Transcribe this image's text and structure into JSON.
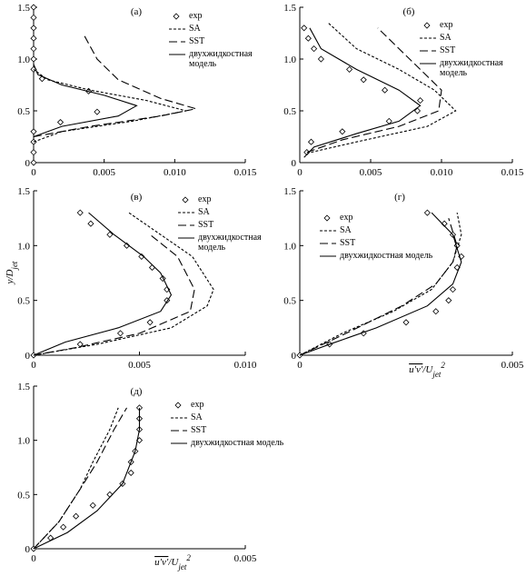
{
  "chart_data": [
    {
      "type": "line",
      "title": "(а)",
      "xlim": [
        0,
        0.015
      ],
      "ylim": [
        0,
        1.5
      ],
      "xticks": [
        0,
        0.005,
        {
          "value": 0.01,
          "label": "0.010"
        },
        0.015
      ],
      "yticks": [
        0,
        0.5,
        {
          "value": 1,
          "label": "1.0"
        },
        1.5
      ],
      "series": [
        {
          "name": "exp",
          "color": "#000",
          "marker": "diamond",
          "x": [
            0,
            0,
            0,
            0,
            0.0019,
            0.0045,
            0.0039,
            0.0006,
            0,
            0,
            0,
            0,
            0,
            0,
            0
          ],
          "y": [
            0,
            0.1,
            0.2,
            0.3,
            0.39,
            0.49,
            0.69,
            0.81,
            0.9,
            1,
            1.1,
            1.2,
            1.3,
            1.4,
            1.5
          ]
        },
        {
          "name": "SA",
          "color": "#000",
          "linestyle": "short-dash",
          "x": [
            0,
            0.002,
            0.007,
            0.0108,
            0.008,
            0.004,
            0.001,
            0
          ],
          "y": [
            0.2,
            0.3,
            0.4,
            0.5,
            0.6,
            0.7,
            0.8,
            0.9
          ]
        },
        {
          "name": "SST",
          "color": "#000",
          "linestyle": "long-dash",
          "x": [
            0,
            0.004,
            0.009,
            0.0115,
            0.009,
            0.006,
            0.0045,
            0.0035
          ],
          "y": [
            0.25,
            0.35,
            0.45,
            0.52,
            0.62,
            0.8,
            1,
            1.25
          ]
        },
        {
          "name": "двухжидкостная модель",
          "color": "#000",
          "linestyle": "solid",
          "x": [
            0,
            0.002,
            0.006,
            0.0073,
            0.005,
            0.002,
            0.0003,
            0
          ],
          "y": [
            0.25,
            0.35,
            0.45,
            0.55,
            0.65,
            0.75,
            0.85,
            0.95
          ]
        }
      ]
    },
    {
      "type": "line",
      "title": "(б)",
      "xlim": [
        0,
        0.015
      ],
      "ylim": [
        0,
        1.5
      ],
      "xticks": [
        0,
        0.005,
        {
          "value": 0.01,
          "label": "0.010"
        },
        0.015
      ],
      "yticks": [
        0,
        0.5,
        {
          "value": 1,
          "label": "1.0"
        },
        1.5
      ],
      "series": [
        {
          "name": "exp",
          "color": "#000",
          "marker": "diamond",
          "x": [
            0.0005,
            0.0008,
            0.003,
            0.0063,
            0.0083,
            0.0085,
            0.006,
            0.0045,
            0.0035,
            0.0015,
            0.001,
            0.0006,
            0.0003
          ],
          "y": [
            0.1,
            0.2,
            0.3,
            0.4,
            0.5,
            0.6,
            0.7,
            0.8,
            0.9,
            1,
            1.1,
            1.2,
            1.3
          ]
        },
        {
          "name": "SA",
          "color": "#000",
          "linestyle": "short-dash",
          "x": [
            0.0008,
            0.004,
            0.009,
            0.011,
            0.0095,
            0.007,
            0.004,
            0.002
          ],
          "y": [
            0.1,
            0.2,
            0.35,
            0.5,
            0.7,
            0.9,
            1.1,
            1.35
          ]
        },
        {
          "name": "SST",
          "color": "#000",
          "linestyle": "long-dash",
          "x": [
            0.0005,
            0.003,
            0.007,
            0.0098,
            0.01,
            0.0085,
            0.007,
            0.0055
          ],
          "y": [
            0.1,
            0.22,
            0.35,
            0.5,
            0.7,
            0.9,
            1.1,
            1.3
          ]
        },
        {
          "name": "двухжидкостная модель",
          "color": "#000",
          "linestyle": "solid",
          "x": [
            0.0003,
            0.001,
            0.004,
            0.007,
            0.0085,
            0.007,
            0.004,
            0.0015,
            0.0007
          ],
          "y": [
            0.05,
            0.15,
            0.28,
            0.4,
            0.55,
            0.7,
            0.9,
            1.1,
            1.3
          ]
        }
      ]
    },
    {
      "type": "line",
      "title": "(в)",
      "ylabel": [
        "y/D",
        "jet"
      ],
      "xlim": [
        0,
        0.01
      ],
      "ylim": [
        0,
        1.5
      ],
      "xticks": [
        0,
        0.005,
        {
          "value": 0.01,
          "label": "0.010"
        }
      ],
      "yticks": [
        0,
        0.5,
        {
          "value": 1,
          "label": "1.0"
        },
        1.5
      ],
      "series": [
        {
          "name": "exp",
          "color": "#000",
          "marker": "diamond",
          "x": [
            0,
            0.0022,
            0.0041,
            0.0055,
            0.0063,
            0.0063,
            0.0061,
            0.0056,
            0.0051,
            0.0044,
            0.0036,
            0.0027,
            0.0022
          ],
          "y": [
            0,
            0.1,
            0.2,
            0.3,
            0.5,
            0.6,
            0.7,
            0.8,
            0.9,
            1,
            1.1,
            1.2,
            1.3
          ]
        },
        {
          "name": "SA",
          "color": "#000",
          "linestyle": "short-dash",
          "x": [
            0,
            0.003,
            0.0065,
            0.0082,
            0.0085,
            0.0075,
            0.006,
            0.0045
          ],
          "y": [
            0,
            0.1,
            0.25,
            0.45,
            0.6,
            0.9,
            1.1,
            1.3
          ]
        },
        {
          "name": "SST",
          "color": "#000",
          "linestyle": "long-dash",
          "x": [
            0,
            0.002,
            0.005,
            0.0074,
            0.0076,
            0.0068,
            0.0055
          ],
          "y": [
            0,
            0.07,
            0.2,
            0.4,
            0.6,
            0.9,
            1.1
          ]
        },
        {
          "name": "двухжидкостная модель",
          "color": "#000",
          "linestyle": "solid",
          "x": [
            0,
            0.0015,
            0.004,
            0.006,
            0.0065,
            0.006,
            0.0052,
            0.0038,
            0.0026
          ],
          "y": [
            0,
            0.12,
            0.25,
            0.4,
            0.55,
            0.75,
            0.9,
            1.1,
            1.3
          ]
        }
      ]
    },
    {
      "type": "line",
      "title": "(г)",
      "xlabel": [
        "u′v′",
        "/U",
        "jet",
        "2"
      ],
      "xlim": [
        0,
        0.005
      ],
      "ylim": [
        0,
        1.5
      ],
      "xticks": [
        0,
        0.005
      ],
      "yticks": [
        0,
        0.5,
        {
          "value": 1,
          "label": "1.0"
        },
        1.5
      ],
      "series": [
        {
          "name": "exp",
          "color": "#000",
          "marker": "diamond",
          "x": [
            0,
            0.0007,
            0.0015,
            0.0025,
            0.0032,
            0.0035,
            0.0036,
            0.0037,
            0.0038,
            0.0037,
            0.0036,
            0.0034,
            0.003
          ],
          "y": [
            0,
            0.1,
            0.2,
            0.3,
            0.4,
            0.5,
            0.6,
            0.8,
            0.9,
            1,
            1.1,
            1.2,
            1.3
          ]
        },
        {
          "name": "SA",
          "color": "#000",
          "linestyle": "short-dash",
          "x": [
            0,
            0.001,
            0.0022,
            0.0031,
            0.0036,
            0.0038,
            0.0037
          ],
          "y": [
            0,
            0.2,
            0.4,
            0.6,
            0.85,
            1.1,
            1.3
          ]
        },
        {
          "name": "SST",
          "color": "#000",
          "linestyle": "long-dash",
          "x": [
            0,
            0.0012,
            0.0024,
            0.0032,
            0.0036,
            0.0037,
            0.0035
          ],
          "y": [
            0,
            0.22,
            0.45,
            0.65,
            0.85,
            1,
            1.25
          ]
        },
        {
          "name": "двухжидкостная модель",
          "color": "#000",
          "linestyle": "solid",
          "x": [
            0,
            0.0007,
            0.0018,
            0.003,
            0.0036,
            0.0038,
            0.0036,
            0.0031
          ],
          "y": [
            0,
            0.1,
            0.25,
            0.45,
            0.65,
            0.85,
            1.1,
            1.3
          ]
        }
      ]
    },
    {
      "type": "line",
      "title": "(д)",
      "xlabel": [
        "u′v′",
        "/U",
        "jet",
        "2"
      ],
      "xlim": [
        0,
        0.005
      ],
      "ylim": [
        0,
        1.5
      ],
      "xticks": [
        0,
        0.005
      ],
      "yticks": [
        0,
        0.5,
        {
          "value": 1,
          "label": "1.0"
        },
        1.5
      ],
      "series": [
        {
          "name": "exp",
          "color": "#000",
          "marker": "diamond",
          "x": [
            0,
            0.0004,
            0.0007,
            0.001,
            0.0014,
            0.0018,
            0.0021,
            0.0023,
            0.0023,
            0.0024,
            0.0025,
            0.0025,
            0.0025,
            0.0025
          ],
          "y": [
            0,
            0.1,
            0.2,
            0.3,
            0.4,
            0.5,
            0.6,
            0.7,
            0.8,
            0.9,
            1,
            1.1,
            1.2,
            1.3
          ]
        },
        {
          "name": "SA",
          "color": "#000",
          "linestyle": "short-dash",
          "x": [
            0,
            0.0006,
            0.0011,
            0.0014,
            0.0018,
            0.002
          ],
          "y": [
            0,
            0.25,
            0.55,
            0.8,
            1.1,
            1.3
          ]
        },
        {
          "name": "SST",
          "color": "#000",
          "linestyle": "long-dash",
          "x": [
            0,
            0.0006,
            0.0011,
            0.0015,
            0.0019,
            0.0022
          ],
          "y": [
            0,
            0.25,
            0.55,
            0.8,
            1.1,
            1.3
          ]
        },
        {
          "name": "двухжидкостная модель",
          "color": "#000",
          "linestyle": "solid",
          "x": [
            0,
            0.0008,
            0.0015,
            0.0021,
            0.0024,
            0.0025,
            0.0025
          ],
          "y": [
            0,
            0.15,
            0.35,
            0.6,
            0.9,
            1.1,
            1.3
          ]
        }
      ]
    }
  ]
}
